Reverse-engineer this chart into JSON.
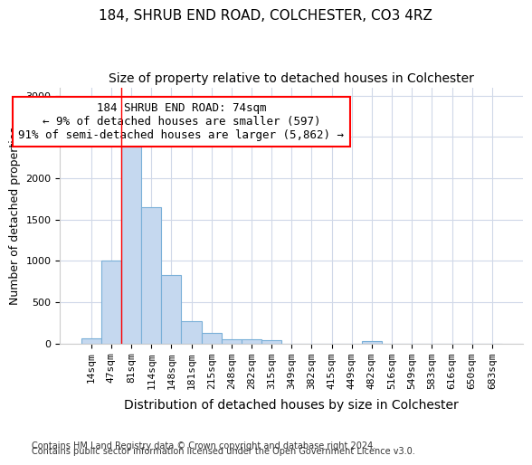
{
  "title1": "184, SHRUB END ROAD, COLCHESTER, CO3 4RZ",
  "title2": "Size of property relative to detached houses in Colchester",
  "xlabel": "Distribution of detached houses by size in Colchester",
  "ylabel": "Number of detached properties",
  "footnote1": "Contains HM Land Registry data © Crown copyright and database right 2024.",
  "footnote2": "Contains public sector information licensed under the Open Government Licence v3.0.",
  "annotation_line1": "184 SHRUB END ROAD: 74sqm",
  "annotation_line2": "← 9% of detached houses are smaller (597)",
  "annotation_line3": "91% of semi-detached houses are larger (5,862) →",
  "bar_values": [
    60,
    1000,
    2450,
    1650,
    830,
    270,
    130,
    55,
    50,
    40,
    0,
    0,
    0,
    0,
    30,
    0,
    0,
    0,
    0,
    0,
    0
  ],
  "bar_labels": [
    "14sqm",
    "47sqm",
    "81sqm",
    "114sqm",
    "148sqm",
    "181sqm",
    "215sqm",
    "248sqm",
    "282sqm",
    "315sqm",
    "349sqm",
    "382sqm",
    "415sqm",
    "449sqm",
    "482sqm",
    "516sqm",
    "549sqm",
    "583sqm",
    "616sqm",
    "650sqm",
    "683sqm"
  ],
  "bar_color": "#c5d8ef",
  "bar_edge_color": "#7ab0d8",
  "background_color": "#ffffff",
  "grid_color": "#d0d8e8",
  "redline_x": 1.5,
  "ylim": [
    0,
    3100
  ],
  "yticks": [
    0,
    500,
    1000,
    1500,
    2000,
    2500,
    3000
  ],
  "title1_fontsize": 11,
  "title2_fontsize": 10,
  "annot_fontsize": 9,
  "tick_fontsize": 8,
  "xlabel_fontsize": 10,
  "ylabel_fontsize": 9,
  "footnote_fontsize": 7
}
